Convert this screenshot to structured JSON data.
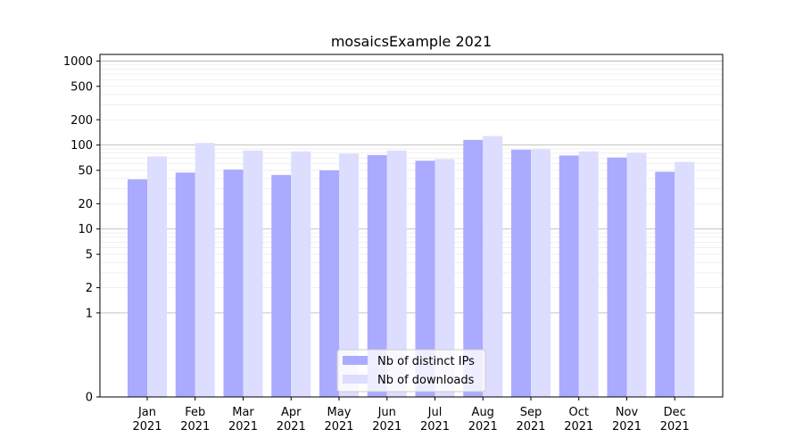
{
  "chart_data": {
    "type": "bar",
    "title": "mosaicsExample 2021",
    "xlabel": "",
    "ylabel": "",
    "yscale": "symlog",
    "ylim": [
      0,
      1200
    ],
    "categories": [
      "Jan\n2021",
      "Feb\n2021",
      "Mar\n2021",
      "Apr\n2021",
      "May\n2021",
      "Jun\n2021",
      "Jul\n2021",
      "Aug\n2021",
      "Sep\n2021",
      "Oct\n2021",
      "Nov\n2021",
      "Dec\n2021"
    ],
    "yticks": [
      0,
      1,
      2,
      5,
      10,
      20,
      50,
      100,
      200,
      500,
      1000
    ],
    "ytick_labels": [
      "0",
      "1",
      "2",
      "5",
      "10",
      "20",
      "50",
      "100",
      "200",
      "500",
      "1000"
    ],
    "series": [
      {
        "name": "Nb of distinct IPs",
        "color": "#aaaaff",
        "values": [
          39,
          47,
          51,
          44,
          50,
          76,
          65,
          115,
          88,
          75,
          71,
          48
        ]
      },
      {
        "name": "Nb of downloads",
        "color": "#ddddff",
        "values": [
          73,
          106,
          86,
          84,
          79,
          86,
          68,
          128,
          89,
          84,
          81,
          63
        ]
      }
    ],
    "grid": "y-major-and-minor",
    "legend_position": "lower-center"
  }
}
